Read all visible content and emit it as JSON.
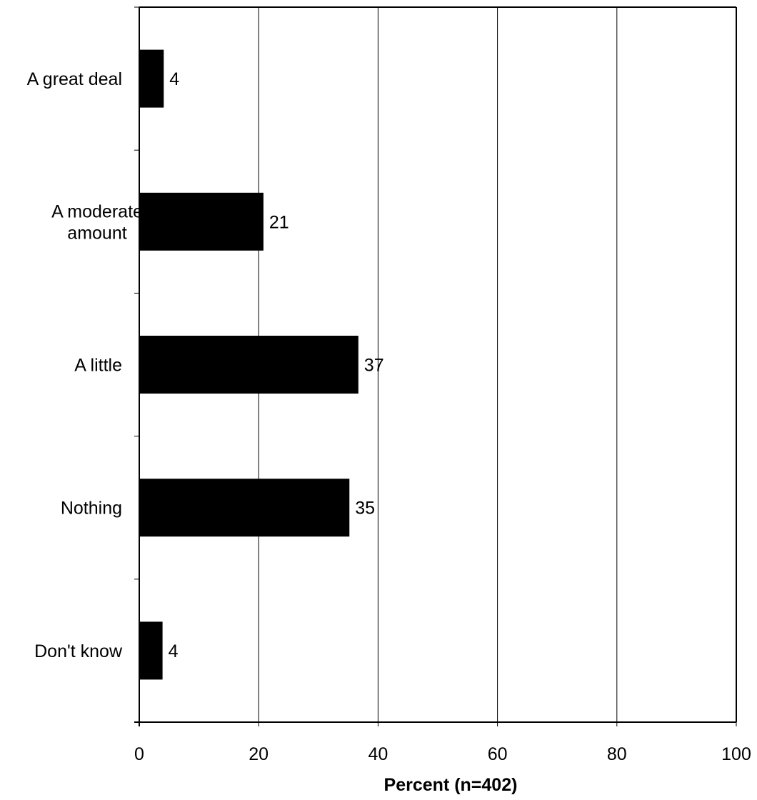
{
  "chart_data": {
    "type": "bar",
    "orientation": "horizontal",
    "title": "",
    "xlabel": "Percent (n=402)",
    "ylabel": "",
    "categories": [
      "A great deal",
      "A moderate amount",
      "A little",
      "Nothing",
      "Don't know"
    ],
    "category_lines": [
      [
        "A great deal"
      ],
      [
        "A moderate",
        "amount"
      ],
      [
        "A little"
      ],
      [
        "Nothing"
      ],
      [
        "Don't know"
      ]
    ],
    "values": [
      4,
      21,
      37,
      35,
      4
    ],
    "bar_values": [
      4.1,
      20.8,
      36.7,
      35.2,
      3.9
    ],
    "data_labels": [
      "4",
      "21",
      "37",
      "35",
      "4"
    ],
    "xlim": [
      0,
      100
    ],
    "xticks": [
      0,
      20,
      40,
      60,
      80,
      100
    ],
    "xtick_labels": [
      "0",
      "20",
      "40",
      "60",
      "80",
      "100"
    ],
    "grid": "vertical",
    "legend": "none",
    "bar_color": "#000000",
    "axis_color": "#000000",
    "background": "#ffffff"
  }
}
